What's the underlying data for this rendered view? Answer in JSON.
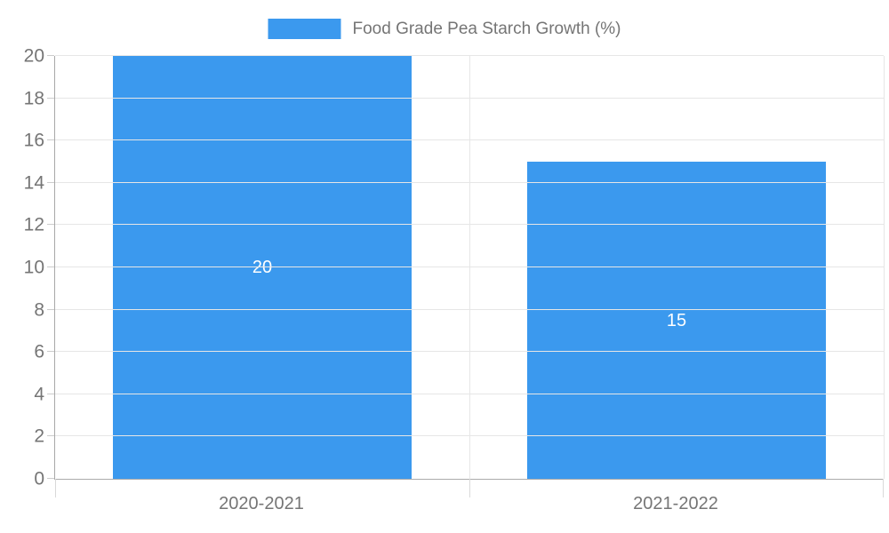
{
  "chart_data": {
    "type": "bar",
    "title": "",
    "legend": "Food Grade Pea Starch Growth (%)",
    "legend_position": "top-center",
    "categories": [
      "2020-2021",
      "2021-2022"
    ],
    "values": [
      20,
      15
    ],
    "xlabel": "",
    "ylabel": "",
    "ylim": [
      0,
      20
    ],
    "ytick_step": 2,
    "grid": true,
    "colors": {
      "bar": "#3b99ee",
      "bar_value_label": "#ffffff",
      "axis_text": "#757575",
      "axis_line": "#a8a8a8",
      "gridline": "#e6e6e6"
    }
  }
}
